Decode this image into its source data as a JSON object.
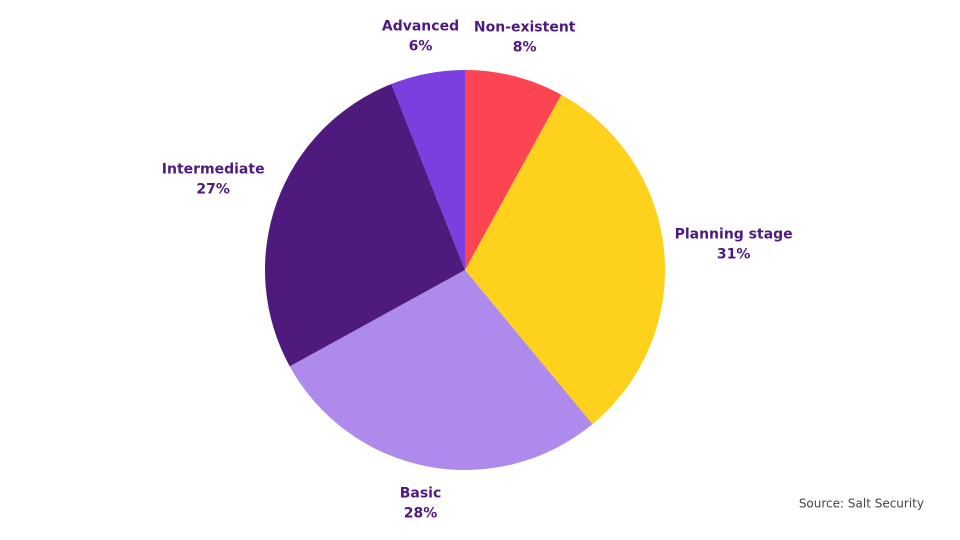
{
  "chart_data": {
    "type": "pie",
    "categories": [
      "Non-existent",
      "Planning stage",
      "Basic",
      "Intermediate",
      "Advanced"
    ],
    "values": [
      8,
      31,
      28,
      27,
      6
    ],
    "value_labels": [
      "8%",
      "31%",
      "28%",
      "27%",
      "6%"
    ],
    "colors": [
      "#fc4452",
      "#fed11c",
      "#ae8aec",
      "#4f1a7e",
      "#7b3fe0"
    ],
    "source": "Source: Salt Security"
  }
}
